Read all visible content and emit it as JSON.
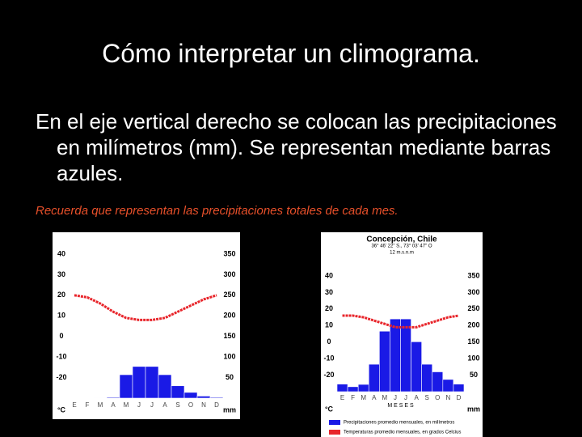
{
  "title": "Cómo interpretar un climograma.",
  "body": "En el eje vertical derecho se colocan las precipitaciones en milímetros (mm). Se representan mediante barras azules.",
  "note": "Recuerda que representan las precipitaciones totales de cada mes.",
  "chart_data": [
    {
      "type": "climograph",
      "categories": [
        "E",
        "F",
        "M",
        "A",
        "M",
        "J",
        "J",
        "A",
        "S",
        "O",
        "N",
        "D"
      ],
      "ylabel": "°C",
      "y2label": "mm",
      "ylim": [
        -30,
        40
      ],
      "yticks": [
        40,
        30,
        20,
        10,
        0,
        -10,
        -20
      ],
      "y2lim": [
        0,
        350
      ],
      "y2ticks": [
        350,
        300,
        250,
        200,
        150,
        100,
        50
      ],
      "series": [
        {
          "color": "#1a1ae6",
          "axis": "y2",
          "values": [
            0,
            0,
            1,
            2,
            57,
            77,
            77,
            57,
            30,
            14,
            5,
            2
          ]
        },
        {
          "color": "#e8252b",
          "values": [
            20,
            19,
            16,
            12,
            9,
            8,
            8,
            9,
            12,
            15,
            18,
            20
          ]
        }
      ]
    },
    {
      "type": "climograph",
      "title": "Concepción, Chile",
      "subtitle": "36° 46' 22\" S., 73° 03' 47\" O",
      "altitude": "12 m.s.n.m",
      "categories": [
        "E",
        "F",
        "M",
        "A",
        "M",
        "J",
        "J",
        "A",
        "S",
        "O",
        "N",
        "D"
      ],
      "xlabel": "M E S E S",
      "ylabel": "°C",
      "y2label": "mm",
      "ylim": [
        -30,
        40
      ],
      "yticks": [
        40,
        30,
        20,
        10,
        0,
        -10,
        -20
      ],
      "y2lim": [
        0,
        350
      ],
      "y2ticks": [
        350,
        300,
        250,
        200,
        150,
        100,
        50
      ],
      "series": [
        {
          "name": "Precipitaciones promedio mensuales, en milímetros",
          "color": "#1a1ae6",
          "axis": "y2",
          "values": [
            23,
            15,
            22,
            83,
            183,
            220,
            220,
            151,
            83,
            60,
            37,
            23
          ]
        },
        {
          "name": "Temperaturas promedio mensuales, en grados Celcius",
          "color": "#e8252b",
          "values": [
            16,
            16,
            15,
            13,
            11,
            9,
            9,
            9,
            11,
            13,
            15,
            16
          ]
        }
      ]
    }
  ]
}
